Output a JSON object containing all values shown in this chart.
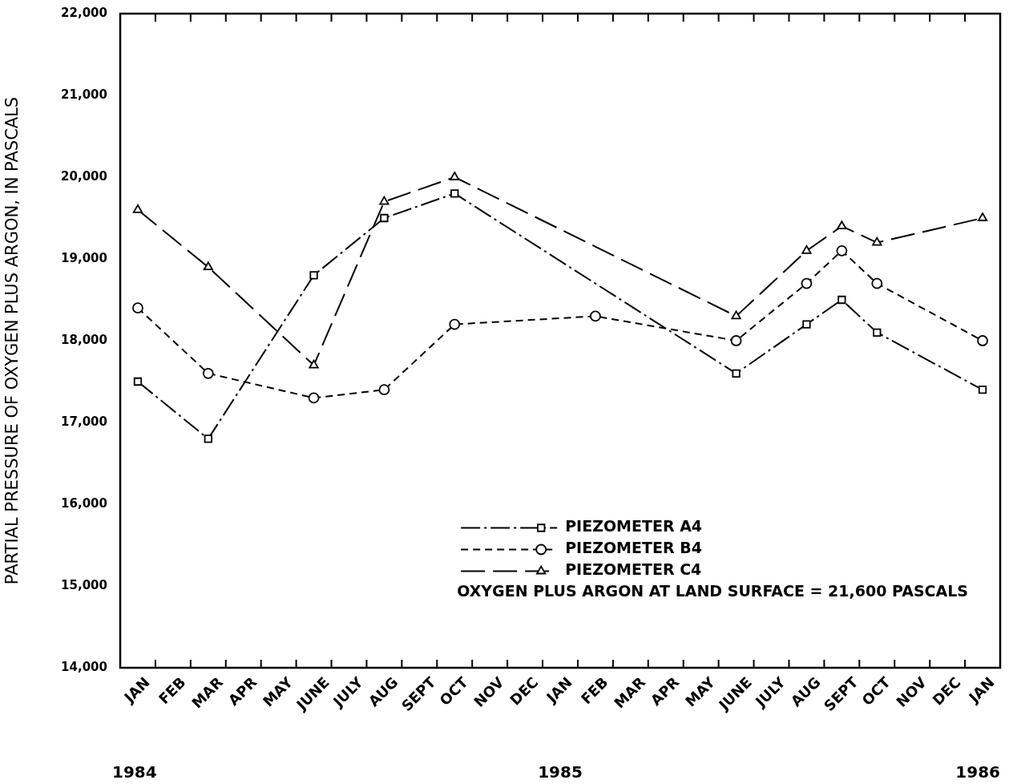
{
  "chart_data": {
    "type": "line",
    "ylabel": "PARTIAL PRESSURE OF OXYGEN PLUS ARGON, IN PASCALS",
    "categories": [
      "JAN",
      "FEB",
      "MAR",
      "APR",
      "MAY",
      "JUNE",
      "JULY",
      "AUG",
      "SEPT",
      "OCT",
      "NOV",
      "DEC",
      "JAN",
      "FEB",
      "MAR",
      "APR",
      "MAY",
      "JUNE",
      "JULY",
      "AUG",
      "SEPT",
      "OCT",
      "NOV",
      "DEC",
      "JAN"
    ],
    "ylim": [
      14000,
      22000
    ],
    "yticks": [
      {
        "value": 14000,
        "label": "14,000"
      },
      {
        "value": 15000,
        "label": "15,000"
      },
      {
        "value": 16000,
        "label": "16,000"
      },
      {
        "value": 17000,
        "label": "17,000"
      },
      {
        "value": 18000,
        "label": "18,000"
      },
      {
        "value": 19000,
        "label": "19,000"
      },
      {
        "value": 20000,
        "label": "20,000"
      },
      {
        "value": 21000,
        "label": "21,000"
      },
      {
        "value": 22000,
        "label": "22,000"
      }
    ],
    "series": [
      {
        "name": "PIEZOMETER A4",
        "color": "#000000",
        "marker": "square",
        "line_style": "dashdot",
        "values": [
          17500,
          null,
          16800,
          null,
          null,
          18800,
          null,
          19500,
          null,
          19800,
          null,
          null,
          null,
          null,
          null,
          null,
          null,
          17600,
          null,
          18200,
          18500,
          18100,
          null,
          null,
          17400
        ]
      },
      {
        "name": "PIEZOMETER B4",
        "color": "#000000",
        "marker": "circle",
        "line_style": "dashed",
        "values": [
          18400,
          null,
          17600,
          null,
          null,
          17300,
          null,
          17400,
          null,
          18200,
          null,
          null,
          null,
          18300,
          null,
          null,
          null,
          18000,
          null,
          18700,
          19100,
          18700,
          null,
          null,
          18000
        ]
      },
      {
        "name": "PIEZOMETER C4",
        "color": "#000000",
        "marker": "triangle",
        "line_style": "longdash",
        "values": [
          19600,
          null,
          18900,
          null,
          null,
          17700,
          null,
          19700,
          null,
          20000,
          null,
          null,
          null,
          null,
          null,
          null,
          null,
          18300,
          null,
          19100,
          19400,
          19200,
          null,
          null,
          19500
        ]
      }
    ],
    "legend": "bottom right",
    "annotations": [
      "OXYGEN PLUS ARGON AT LAND SURFACE = 21,600 PASCALS",
      "1984",
      "1985",
      "1986"
    ]
  }
}
